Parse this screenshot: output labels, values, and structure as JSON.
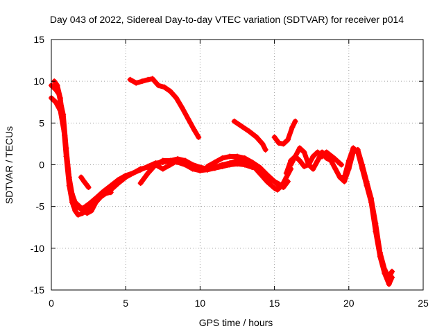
{
  "chart_data": {
    "type": "scatter",
    "title": "Day 043 of 2022, Sidereal Day-to-day VTEC variation (SDTVAR) for receiver p014",
    "xlabel": "GPS time / hours",
    "ylabel": "SDTVAR / TECUs",
    "xlim": [
      0,
      25
    ],
    "ylim": [
      -15,
      15
    ],
    "xticks": [
      0,
      5,
      10,
      15,
      20,
      25
    ],
    "yticks": [
      -15,
      -10,
      -5,
      0,
      5,
      10,
      15
    ],
    "grid": true,
    "marker": "+",
    "color": "#ff0000",
    "series": [
      {
        "name": "pass-1",
        "x": [
          0.0,
          0.3,
          0.6,
          0.9,
          1.1,
          1.3,
          1.5,
          1.7,
          2.0,
          2.3,
          2.6,
          3.0,
          3.5,
          4.0,
          4.5,
          5.0,
          5.5,
          6.0,
          6.5,
          7.0,
          7.5,
          8.0,
          8.5,
          9.0,
          9.5,
          10.0,
          10.5,
          11.0,
          11.5,
          12.0,
          12.5,
          13.0,
          13.5,
          14.0,
          14.5,
          15.0,
          15.3,
          15.6,
          15.9
        ],
        "y": [
          8.0,
          7.5,
          6.5,
          3.5,
          0.0,
          -3.0,
          -4.5,
          -5.0,
          -5.3,
          -5.0,
          -4.6,
          -4.0,
          -3.2,
          -2.5,
          -1.8,
          -1.3,
          -1.0,
          -0.5,
          -0.3,
          0.0,
          -0.5,
          0.0,
          0.5,
          0.3,
          -0.3,
          -0.7,
          -0.6,
          -0.4,
          -0.2,
          0.0,
          0.2,
          0.3,
          0.0,
          -0.8,
          -1.5,
          -2.0,
          -2.5,
          -2.7,
          -2.0
        ]
      },
      {
        "name": "pass-2",
        "x": [
          0.0,
          0.3,
          0.5,
          0.8,
          1.0,
          1.2,
          1.4,
          1.6,
          1.9,
          2.2,
          2.5,
          2.8,
          3.2,
          3.6,
          4.0,
          4.5,
          5.0,
          5.5,
          6.0,
          6.5,
          7.0,
          7.5,
          8.0,
          8.5,
          9.0,
          9.5,
          10.0,
          10.5,
          11.0,
          11.5,
          12.0,
          12.5,
          13.0,
          13.5,
          14.0,
          14.5,
          15.0,
          15.2,
          15.5,
          15.8,
          16.1
        ],
        "y": [
          9.5,
          9.0,
          8.5,
          6.0,
          2.0,
          -1.5,
          -3.5,
          -4.5,
          -5.0,
          -5.5,
          -5.3,
          -4.8,
          -4.0,
          -3.5,
          -3.0,
          -2.2,
          -1.5,
          -1.0,
          -0.6,
          -0.2,
          0.2,
          0.3,
          0.5,
          0.7,
          0.5,
          0.0,
          -0.3,
          -0.5,
          -0.3,
          0.0,
          0.2,
          0.5,
          0.4,
          0.0,
          -1.0,
          -2.0,
          -2.8,
          -3.0,
          -2.5,
          -1.5,
          -0.5
        ]
      },
      {
        "name": "pass-3",
        "x": [
          0.2,
          0.4,
          0.6,
          0.8,
          1.0,
          1.2,
          1.4,
          1.6,
          1.8,
          2.1,
          2.4,
          2.7
        ],
        "y": [
          10.0,
          9.5,
          8.0,
          5.0,
          1.0,
          -2.5,
          -4.5,
          -5.5,
          -6.0,
          -5.8,
          -5.5,
          -5.2
        ]
      },
      {
        "name": "pass-4",
        "x": [
          2.0,
          2.2,
          2.5
        ],
        "y": [
          -1.5,
          -2.0,
          -2.7
        ]
      },
      {
        "name": "pass-5",
        "x": [
          2.4,
          2.7,
          3.0,
          3.5,
          4.0
        ],
        "y": [
          -5.8,
          -5.5,
          -4.5,
          -3.5,
          -3.3
        ]
      },
      {
        "name": "pass-6",
        "x": [
          6.0,
          6.5,
          7.0,
          7.5,
          8.0,
          8.5,
          9.0,
          9.5,
          10.0,
          10.5,
          11.0,
          11.5,
          12.0,
          12.5,
          13.0,
          13.5,
          14.0
        ],
        "y": [
          -2.2,
          -1.0,
          0.0,
          0.5,
          0.5,
          0.3,
          0.0,
          -0.5,
          -0.7,
          -0.5,
          -0.3,
          -0.1,
          0.0,
          0.1,
          0.0,
          -0.3,
          -0.5
        ]
      },
      {
        "name": "pass-7",
        "x": [
          10.5,
          11.0,
          11.5,
          12.0,
          12.5,
          13.0,
          13.5,
          14.0,
          14.5,
          15.0,
          15.5
        ],
        "y": [
          -0.2,
          0.3,
          0.8,
          1.0,
          1.0,
          0.8,
          0.3,
          -0.3,
          -1.2,
          -2.0,
          -2.5
        ]
      },
      {
        "name": "pass-8",
        "x": [
          5.3,
          5.7,
          6.1,
          6.5,
          6.8,
          7.2,
          7.6,
          8.0,
          8.4,
          8.8,
          9.2,
          9.6,
          9.9
        ],
        "y": [
          10.2,
          9.8,
          10.0,
          10.2,
          10.3,
          9.5,
          9.3,
          8.8,
          8.0,
          6.8,
          5.5,
          4.2,
          3.3
        ]
      },
      {
        "name": "pass-9",
        "x": [
          12.3,
          12.8,
          13.3,
          13.8,
          14.2,
          14.4
        ],
        "y": [
          5.2,
          4.6,
          4.0,
          3.3,
          2.5,
          1.8
        ]
      },
      {
        "name": "pass-10",
        "x": [
          15.0,
          15.3,
          15.6,
          15.9,
          16.2,
          16.4
        ],
        "y": [
          3.3,
          2.6,
          2.5,
          3.0,
          4.5,
          5.2
        ]
      },
      {
        "name": "pass-11",
        "x": [
          15.8,
          16.1,
          16.4,
          16.7,
          17.0,
          17.3,
          17.6,
          17.9,
          18.2,
          18.5,
          18.8,
          19.1,
          19.4,
          19.7,
          20.0,
          20.3,
          20.6,
          20.9,
          21.2,
          21.5,
          21.8,
          22.1,
          22.4,
          22.7,
          22.9
        ],
        "y": [
          -1.0,
          0.5,
          1.0,
          0.5,
          -0.2,
          0.0,
          1.0,
          1.5,
          1.0,
          1.2,
          0.5,
          -0.5,
          -1.5,
          -1.5,
          0.5,
          2.0,
          1.5,
          -0.5,
          -2.5,
          -4.5,
          -8.0,
          -11.0,
          -13.0,
          -14.3,
          -13.5
        ]
      },
      {
        "name": "pass-12",
        "x": [
          16.1,
          16.4,
          16.7,
          17.0,
          17.3,
          17.6,
          17.9,
          18.2,
          18.5,
          18.8,
          19.1,
          19.4,
          19.7,
          20.0,
          20.3,
          20.6,
          20.9,
          21.2,
          21.5,
          21.8,
          22.1,
          22.4,
          22.7,
          22.9
        ],
        "y": [
          0.0,
          1.0,
          2.0,
          1.5,
          0.0,
          -0.5,
          0.5,
          1.5,
          0.8,
          0.5,
          -0.5,
          -1.5,
          -2.0,
          -0.5,
          1.5,
          1.8,
          0.0,
          -2.0,
          -4.0,
          -7.0,
          -10.5,
          -12.5,
          -13.5,
          -12.8
        ]
      },
      {
        "name": "pass-13",
        "x": [
          17.6,
          18.0,
          18.5,
          19.0,
          19.5
        ],
        "y": [
          -0.5,
          0.8,
          1.5,
          0.8,
          0.0
        ]
      }
    ]
  }
}
